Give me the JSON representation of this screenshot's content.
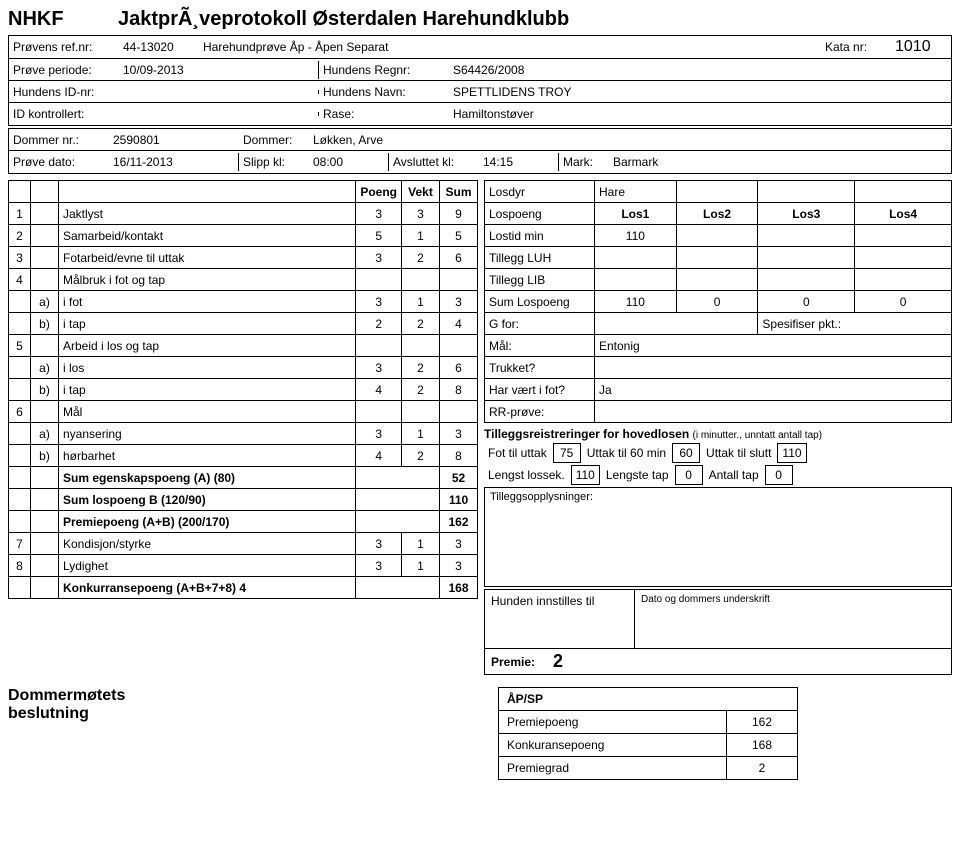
{
  "header": {
    "org": "NHKF",
    "title": "JaktprÃ¸veprotokoll Østerdalen Harehundklubb",
    "provens_ref_label": "Prøvens ref.nr:",
    "provens_ref": "44-13020",
    "prove_name": "Harehundprøve Åp - Åpen Separat",
    "kata_label": "Kata nr:",
    "kata_nr": "1010",
    "periode_label": "Prøve periode:",
    "periode": "10/09-2013",
    "regnr_label": "Hundens Regnr:",
    "regnr": "S64426/2008",
    "idnr_label": "Hundens ID-nr:",
    "idnr": "",
    "navn_label": "Hundens Navn:",
    "navn": "SPETTLIDENS TROY",
    "idkontroll_label": "ID kontrollert:",
    "idkontroll": "",
    "rase_label": "Rase:",
    "rase": "Hamiltonstøver"
  },
  "dommer": {
    "dommernr_label": "Dommer nr.:",
    "dommernr": "2590801",
    "dommer_label": "Dommer:",
    "dommer": "Løkken, Arve",
    "provedato_label": "Prøve dato:",
    "provedato": "16/11-2013",
    "slipp_label": "Slipp kl:",
    "slipp": "08:00",
    "avsluttet_label": "Avsluttet kl:",
    "avsluttet": "14:15",
    "mark_label": "Mark:",
    "mark": "Barmark"
  },
  "score": {
    "cols": [
      "Poeng",
      "Vekt",
      "Sum"
    ],
    "rows": [
      {
        "idx": "1",
        "sub": "",
        "label": "Jaktlyst",
        "p": "3",
        "v": "3",
        "s": "9"
      },
      {
        "idx": "2",
        "sub": "",
        "label": "Samarbeid/kontakt",
        "p": "5",
        "v": "1",
        "s": "5"
      },
      {
        "idx": "3",
        "sub": "",
        "label": "Fotarbeid/evne til uttak",
        "p": "3",
        "v": "2",
        "s": "6"
      },
      {
        "idx": "4",
        "sub": "",
        "label": "Målbruk i fot og tap",
        "p": "",
        "v": "",
        "s": ""
      },
      {
        "idx": "",
        "sub": "a)",
        "label": "i fot",
        "p": "3",
        "v": "1",
        "s": "3"
      },
      {
        "idx": "",
        "sub": "b)",
        "label": "i tap",
        "p": "2",
        "v": "2",
        "s": "4"
      },
      {
        "idx": "5",
        "sub": "",
        "label": "Arbeid i los og tap",
        "p": "",
        "v": "",
        "s": ""
      },
      {
        "idx": "",
        "sub": "a)",
        "label": "i los",
        "p": "3",
        "v": "2",
        "s": "6"
      },
      {
        "idx": "",
        "sub": "b)",
        "label": "i tap",
        "p": "4",
        "v": "2",
        "s": "8"
      },
      {
        "idx": "6",
        "sub": "",
        "label": "Mål",
        "p": "",
        "v": "",
        "s": ""
      },
      {
        "idx": "",
        "sub": "a)",
        "label": "nyansering",
        "p": "3",
        "v": "1",
        "s": "3"
      },
      {
        "idx": "",
        "sub": "b)",
        "label": "hørbarhet",
        "p": "4",
        "v": "2",
        "s": "8"
      }
    ],
    "sumA_label": "Sum egenskapspoeng (A) (80)",
    "sumA": "52",
    "sumB_label": "Sum lospoeng B (120/90)",
    "sumB": "110",
    "premie_label": "Premiepoeng (A+B) (200/170)",
    "premie": "162",
    "row7": {
      "idx": "7",
      "label": "Kondisjon/styrke",
      "p": "3",
      "v": "1",
      "s": "3"
    },
    "row8": {
      "idx": "8",
      "label": "Lydighet",
      "p": "3",
      "v": "1",
      "s": "3"
    },
    "konk_label": "Konkurransepoeng (A+B+7+8) 4",
    "konk": "168"
  },
  "los": {
    "losdyr_label": "Losdyr",
    "losdyr": "Hare",
    "lospoeng_label": "Lospoeng",
    "los_cols": [
      "Los1",
      "Los2",
      "Los3",
      "Los4"
    ],
    "lostid_label": "Lostid min",
    "lostid": "110",
    "luh_label": "Tillegg LUH",
    "lib_label": "Tillegg LIB",
    "sumlos_label": "Sum Lospoeng",
    "sumlos": [
      "110",
      "0",
      "0",
      "0"
    ],
    "gfor_label": "G for:",
    "spes_label": "Spesifiser pkt.:",
    "maal_label": "Mål:",
    "maal": "Entonig",
    "trukket_label": "Trukket?",
    "harvart_label": "Har vært i fot?",
    "harvart": "Ja",
    "rr_label": "RR-prøve:"
  },
  "tillegg": {
    "title": "Tilleggsreistreringer for hovedlosen",
    "subtitle": "(i minutter., unntatt antall tap)",
    "fot_label": "Fot til uttak",
    "fot": "75",
    "u60_label": "Uttak til 60 min",
    "u60": "60",
    "uslutt_label": "Uttak til slutt",
    "uslutt": "110",
    "lengst_label": "Lengst lossek.",
    "lengst": "110",
    "lengste_label": "Lengste tap",
    "lengste": "0",
    "antall_label": "Antall tap",
    "antall": "0",
    "oppl_label": "Tilleggsopplysninger:"
  },
  "innstill": {
    "label": "Hunden innstilles til",
    "sign": "Dato og dommers underskrift",
    "premie_label": "Premie:",
    "premie": "2"
  },
  "bottom": {
    "dmb1": "Dommermøtets",
    "dmb2": "beslutning",
    "apsp": "ÅP/SP",
    "pp_label": "Premiepoeng",
    "pp": "162",
    "kp_label": "Konkuransepoeng",
    "kp": "168",
    "pg_label": "Premiegrad",
    "pg": "2"
  }
}
